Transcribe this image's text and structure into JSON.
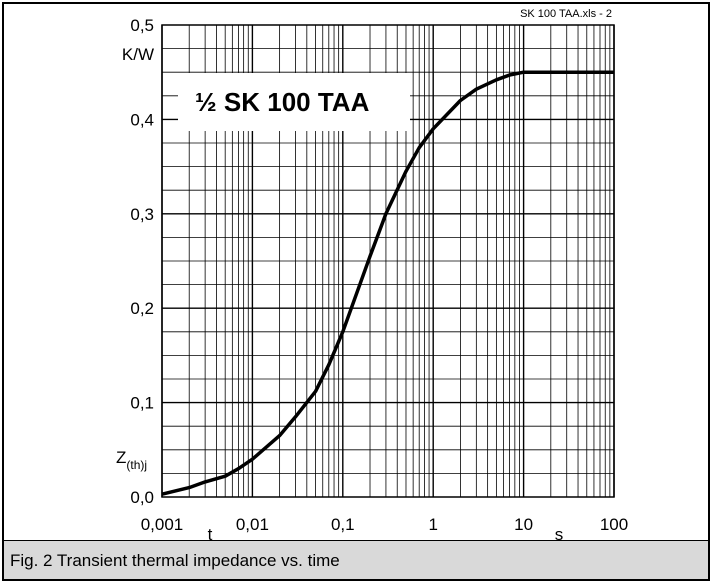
{
  "file_label": "SK 100 TAA.xls - 2",
  "caption": "Fig. 2 Transient thermal impedance vs. time",
  "chart_data": {
    "type": "line",
    "title": "½ SK 100 TAA",
    "xscale": "log",
    "xlim": [
      0.001,
      100
    ],
    "ylim": [
      0,
      0.5
    ],
    "x_ticks": [
      "0,001",
      "0,01",
      "0,1",
      "1",
      "10",
      "100"
    ],
    "y_ticks": [
      "0,0",
      "0,1",
      "0,2",
      "0,3",
      "0,4",
      "0,5"
    ],
    "xlabel": "t",
    "xunit": "s",
    "ylabel": "Z(th)j",
    "yunit": "K/W",
    "grid": true,
    "series": [
      {
        "x": [
          0.001,
          0.002,
          0.003,
          0.005,
          0.007,
          0.01,
          0.02,
          0.03,
          0.05,
          0.07,
          0.1,
          0.2,
          0.3,
          0.5,
          0.7,
          1,
          2,
          3,
          5,
          7,
          10,
          20,
          50,
          100
        ],
        "y": [
          0.003,
          0.01,
          0.016,
          0.022,
          0.03,
          0.04,
          0.065,
          0.085,
          0.112,
          0.14,
          0.175,
          0.255,
          0.3,
          0.345,
          0.37,
          0.39,
          0.42,
          0.432,
          0.442,
          0.447,
          0.45,
          0.45,
          0.45,
          0.45
        ]
      }
    ]
  }
}
